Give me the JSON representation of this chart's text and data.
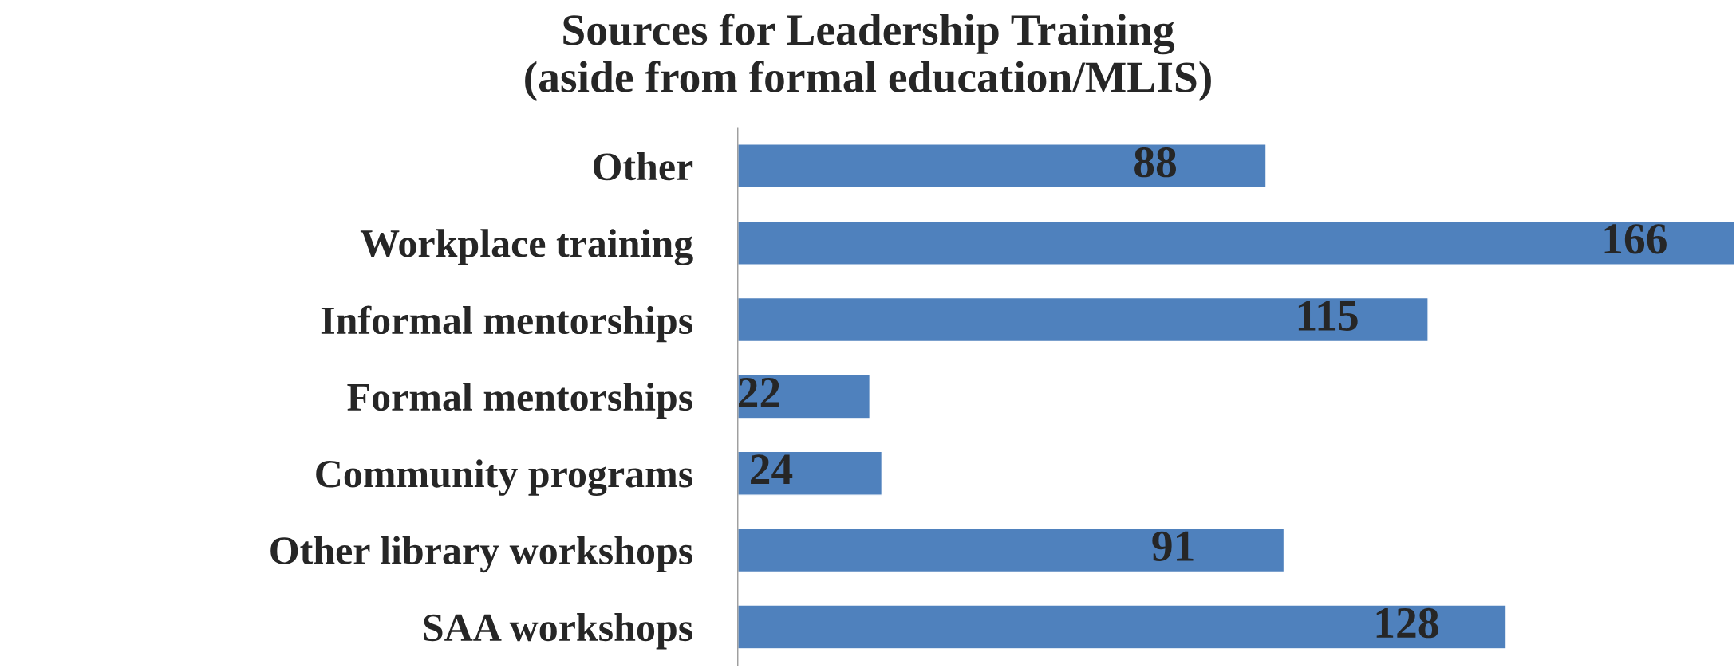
{
  "chart_data": {
    "type": "bar",
    "orientation": "horizontal",
    "title": "Sources for Leadership Training\n(aside from formal education/MLIS)",
    "categories": [
      "Other",
      "Workplace training",
      "Informal mentorships",
      "Formal mentorships",
      "Community programs",
      "Other library workshops",
      "SAA workshops"
    ],
    "values": [
      88,
      166,
      115,
      22,
      24,
      91,
      128
    ],
    "color": "#4f81bd",
    "data_labels": true,
    "grid": false,
    "legend": false
  }
}
